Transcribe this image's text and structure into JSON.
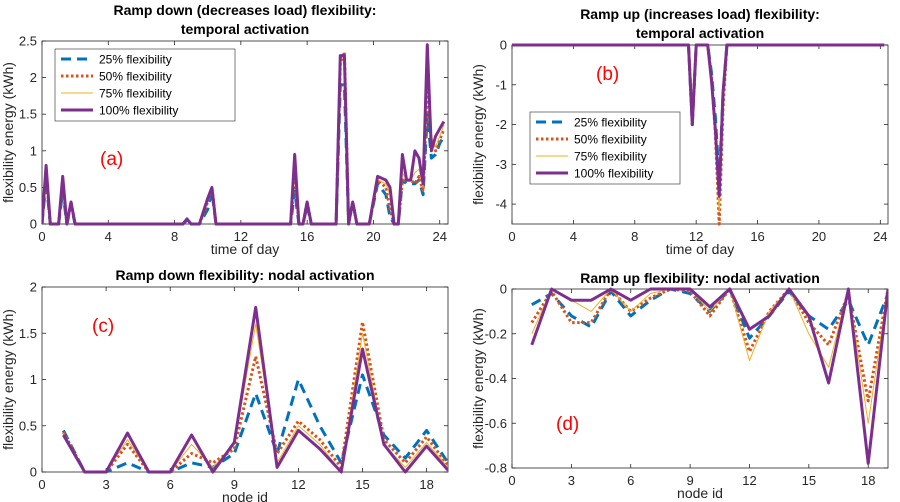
{
  "colors": {
    "s25": "#0072BD",
    "s50": "#D95319",
    "s75": "#EDB120",
    "s100": "#7E2F8E",
    "tag": "#FF0000",
    "axis": "#262626"
  },
  "series_names": [
    "25% flexibility",
    "50% flexibility",
    "75% flexibility",
    "100% flexibility"
  ],
  "chart_data": [
    {
      "id": "a",
      "type": "line",
      "tag": "(a)",
      "title_lines": [
        "Ramp down (decreases load) flexibility:",
        "temporal activation"
      ],
      "xlabel": "time of day",
      "ylabel": "flexibility energy (kWh)",
      "xlim": [
        0,
        24.5
      ],
      "ylim": [
        0,
        2.5
      ],
      "xticks": [
        0,
        4,
        8,
        12,
        16,
        20,
        24
      ],
      "xtick_labels": [
        "0",
        "4",
        "8",
        "12",
        "16",
        "20",
        "24"
      ],
      "yticks": [
        0,
        0.5,
        1,
        1.5,
        2,
        2.5
      ],
      "ytick_labels": [
        "0",
        "0.5",
        "1",
        "1.5",
        "2",
        "2.5"
      ],
      "legend_position": "top-left",
      "series": [
        {
          "name": "25% flexibility",
          "style": "dash",
          "x": [
            0,
            0.25,
            0.5,
            0.75,
            1,
            1.25,
            1.5,
            1.75,
            2,
            2.25,
            2.5,
            8.5,
            8.75,
            9,
            9.5,
            10,
            10.25,
            10.5,
            15,
            15.25,
            15.5,
            15.75,
            16,
            16.25,
            16.5,
            17.25,
            17.75,
            18,
            18.25,
            18.5,
            18.75,
            19,
            19.25,
            19.5,
            19.75,
            20.25,
            20.75,
            21,
            21.25,
            21.5,
            21.75,
            22,
            22.25,
            22.5,
            22.75,
            23,
            23.25,
            23.5,
            23.75,
            24,
            24.25
          ],
          "values": [
            0,
            0.6,
            0,
            0,
            0,
            0.45,
            0,
            0.25,
            0,
            0,
            0,
            0,
            0.05,
            0,
            0,
            0.2,
            0.45,
            0,
            0,
            0.45,
            0,
            0,
            0.25,
            0,
            0,
            0,
            0,
            1.9,
            1.9,
            0,
            0.3,
            0,
            0,
            0,
            0,
            0.55,
            0.4,
            0.1,
            0,
            0,
            0.6,
            0.55,
            0.55,
            0.55,
            0.6,
            0.4,
            1.5,
            0.9,
            0.95,
            1.1,
            1.2
          ]
        },
        {
          "name": "50% flexibility",
          "style": "dot",
          "x": [
            0,
            0.25,
            0.5,
            0.75,
            1,
            1.25,
            1.5,
            1.75,
            2,
            2.25,
            2.5,
            8.5,
            8.75,
            9,
            9.5,
            10,
            10.25,
            10.5,
            15,
            15.25,
            15.5,
            15.75,
            16,
            16.25,
            16.5,
            17.25,
            17.75,
            18,
            18.25,
            18.5,
            18.75,
            19,
            19.25,
            19.5,
            19.75,
            20.25,
            20.75,
            21,
            21.25,
            21.5,
            21.75,
            22,
            22.25,
            22.5,
            22.75,
            23,
            23.25,
            23.5,
            23.75,
            24,
            24.25
          ],
          "values": [
            0,
            0.7,
            0,
            0,
            0,
            0.55,
            0,
            0.3,
            0,
            0,
            0,
            0,
            0.06,
            0,
            0,
            0.3,
            0.5,
            0,
            0,
            0.7,
            0,
            0,
            0.3,
            0,
            0,
            0,
            0,
            2.2,
            2.35,
            0,
            0.3,
            0,
            0,
            0,
            0,
            0.6,
            0.5,
            0.2,
            0,
            0,
            0.6,
            0.6,
            0.6,
            0.55,
            0.65,
            0.45,
            1.8,
            1.1,
            1.0,
            1.15,
            1.3
          ]
        },
        {
          "name": "75% flexibility",
          "style": "solid-thin",
          "x": [
            0,
            0.25,
            0.5,
            0.75,
            1,
            1.25,
            1.5,
            1.75,
            2,
            2.25,
            2.5,
            8.5,
            8.75,
            9,
            9.5,
            10,
            10.25,
            10.5,
            15,
            15.25,
            15.5,
            15.75,
            16,
            16.25,
            16.5,
            17.25,
            17.75,
            18,
            18.25,
            18.5,
            18.75,
            19,
            19.25,
            19.5,
            19.75,
            20.25,
            20.75,
            21,
            21.25,
            21.5,
            21.75,
            22,
            22.25,
            22.5,
            22.75,
            23,
            23.25,
            23.5,
            23.75,
            24,
            24.25
          ],
          "values": [
            0,
            0.75,
            0,
            0,
            0,
            0.6,
            0,
            0.3,
            0,
            0,
            0,
            0,
            0.06,
            0,
            0,
            0.35,
            0.5,
            0,
            0,
            0.85,
            0,
            0,
            0.3,
            0,
            0,
            0,
            0,
            2.25,
            2.3,
            0,
            0.3,
            0,
            0,
            0,
            0,
            0.6,
            0.55,
            0.4,
            0,
            0,
            0.7,
            0.6,
            0.6,
            0.7,
            0.75,
            0.5,
            2.2,
            1.2,
            1.05,
            1.2,
            1.35
          ]
        },
        {
          "name": "100% flexibility",
          "style": "solid-thick",
          "x": [
            0,
            0.25,
            0.5,
            0.75,
            1,
            1.25,
            1.5,
            1.75,
            2,
            2.25,
            2.5,
            8.5,
            8.75,
            9,
            9.5,
            10,
            10.25,
            10.5,
            15,
            15.25,
            15.5,
            15.75,
            16,
            16.25,
            16.5,
            17.25,
            17.75,
            18,
            18.25,
            18.5,
            18.75,
            19,
            19.25,
            19.5,
            19.75,
            20.25,
            20.75,
            21,
            21.25,
            21.5,
            21.75,
            22,
            22.25,
            22.5,
            22.75,
            23,
            23.25,
            23.5,
            23.75,
            24,
            24.25
          ],
          "values": [
            0,
            0.8,
            0,
            0,
            0,
            0.65,
            0,
            0.3,
            0,
            0,
            0,
            0,
            0.07,
            0,
            0,
            0.35,
            0.5,
            0,
            0,
            0.95,
            0,
            0,
            0.3,
            0,
            0,
            0,
            0,
            2.3,
            2.3,
            0,
            0.3,
            0,
            0,
            0,
            0,
            0.65,
            0.6,
            0.5,
            0,
            0,
            0.95,
            0.6,
            0.6,
            1.0,
            0.9,
            0.55,
            2.45,
            1.0,
            1.2,
            1.3,
            1.4
          ]
        }
      ]
    },
    {
      "id": "b",
      "type": "line",
      "tag": "(b)",
      "title_lines": [
        "Ramp up (increases load)  flexibility:",
        "temporal activation"
      ],
      "xlabel": "time of day",
      "ylabel": "flexibility energy (kWh)",
      "xlim": [
        0,
        24.5
      ],
      "ylim": [
        -4.5,
        0
      ],
      "xticks": [
        0,
        4,
        8,
        12,
        16,
        20,
        24
      ],
      "xtick_labels": [
        "0",
        "4",
        "8",
        "12",
        "16",
        "20",
        "24"
      ],
      "yticks": [
        -4,
        -3,
        -2,
        -1,
        0
      ],
      "ytick_labels": [
        "-4",
        "-3",
        "-2",
        "-1",
        "0"
      ],
      "legend_position": "center-left",
      "series": [
        {
          "name": "25% flexibility",
          "style": "dash",
          "x": [
            0,
            11.5,
            11.75,
            12,
            12.25,
            12.75,
            13,
            13.25,
            13.5,
            13.75,
            14,
            24.25
          ],
          "values": [
            0,
            0,
            -2.0,
            0,
            0,
            0,
            -0.7,
            -1.8,
            -3.4,
            -1.3,
            0,
            0
          ]
        },
        {
          "name": "50% flexibility",
          "style": "dot",
          "x": [
            0,
            11.5,
            11.75,
            12,
            12.25,
            12.75,
            13,
            13.25,
            13.5,
            13.75,
            14,
            24.25
          ],
          "values": [
            0,
            0,
            -2.0,
            0,
            0,
            0,
            -0.8,
            -2.2,
            -4.5,
            -1.6,
            0,
            0
          ]
        },
        {
          "name": "75% flexibility",
          "style": "solid-thin",
          "x": [
            0,
            11.5,
            11.75,
            12,
            12.25,
            12.75,
            13,
            13.25,
            13.5,
            13.75,
            14,
            24.25
          ],
          "values": [
            0,
            0,
            -2.0,
            0,
            0,
            0,
            -0.8,
            -2.2,
            -4.2,
            -1.5,
            0,
            0
          ]
        },
        {
          "name": "100% flexibility",
          "style": "solid-thick",
          "x": [
            0,
            11.5,
            11.75,
            12,
            12.25,
            12.75,
            13,
            13.25,
            13.5,
            13.75,
            14,
            24.25
          ],
          "values": [
            0,
            0,
            -2.0,
            0,
            0,
            0,
            -0.9,
            -2.1,
            -3.8,
            -1.2,
            0,
            0
          ]
        }
      ]
    },
    {
      "id": "c",
      "type": "line",
      "tag": "(c)",
      "title_lines": [
        "Ramp down flexibility: nodal activation"
      ],
      "xlabel": "node id",
      "ylabel": "flexibility energy (kWh)",
      "xlim": [
        0,
        19
      ],
      "ylim": [
        0,
        2
      ],
      "xticks": [
        0,
        3,
        6,
        9,
        12,
        15,
        18
      ],
      "xtick_labels": [
        "0",
        "3",
        "6",
        "9",
        "12",
        "15",
        "18"
      ],
      "yticks": [
        0,
        0.5,
        1,
        1.5,
        2
      ],
      "ytick_labels": [
        "0",
        "0.5",
        "1",
        "1.5",
        "2"
      ],
      "legend_position": "none",
      "series": [
        {
          "name": "25% flexibility",
          "style": "dash",
          "x": [
            1,
            2,
            3,
            4,
            5,
            6,
            7,
            8,
            9,
            10,
            11,
            12,
            13,
            14,
            15,
            16,
            17,
            18,
            19
          ],
          "values": [
            0.45,
            0,
            0,
            0.1,
            0,
            0,
            0.1,
            0.05,
            0.2,
            0.85,
            0.2,
            1.0,
            0.5,
            0.1,
            1.05,
            0.4,
            0.15,
            0.45,
            0.1
          ]
        },
        {
          "name": "50% flexibility",
          "style": "dot",
          "x": [
            1,
            2,
            3,
            4,
            5,
            6,
            7,
            8,
            9,
            10,
            11,
            12,
            13,
            14,
            15,
            16,
            17,
            18,
            19
          ],
          "values": [
            0.43,
            0,
            0,
            0.3,
            0,
            0,
            0.2,
            0.1,
            0.25,
            1.25,
            0.2,
            0.55,
            0.35,
            0.05,
            1.62,
            0.35,
            0.1,
            0.38,
            0.07
          ]
        },
        {
          "name": "75% flexibility",
          "style": "solid-thin",
          "x": [
            1,
            2,
            3,
            4,
            5,
            6,
            7,
            8,
            9,
            10,
            11,
            12,
            13,
            14,
            15,
            16,
            17,
            18,
            19
          ],
          "values": [
            0.42,
            0,
            0,
            0.35,
            0,
            0,
            0.3,
            0.05,
            0.3,
            1.6,
            0.1,
            0.5,
            0.3,
            0,
            1.5,
            0.3,
            0.05,
            0.32,
            0.05
          ]
        },
        {
          "name": "100% flexibility",
          "style": "solid-thick",
          "x": [
            1,
            2,
            3,
            4,
            5,
            6,
            7,
            8,
            9,
            10,
            11,
            12,
            13,
            14,
            15,
            16,
            17,
            18,
            19
          ],
          "values": [
            0.4,
            0,
            0,
            0.42,
            0,
            0,
            0.4,
            0,
            0.32,
            1.78,
            0.05,
            0.45,
            0.25,
            0,
            1.33,
            0.3,
            0,
            0.28,
            0.02
          ]
        }
      ]
    },
    {
      "id": "d",
      "type": "line",
      "tag": "(d)",
      "title_lines": [
        "Ramp up flexibility: nodal activation"
      ],
      "xlabel": "node id",
      "ylabel": "flexibility energy (kWh)",
      "xlim": [
        0,
        19
      ],
      "ylim": [
        -0.8,
        0
      ],
      "xticks": [
        0,
        3,
        6,
        9,
        12,
        15,
        18
      ],
      "xtick_labels": [
        "0",
        "3",
        "6",
        "9",
        "12",
        "15",
        "18"
      ],
      "yticks": [
        -0.8,
        -0.6,
        -0.4,
        -0.2,
        0
      ],
      "ytick_labels": [
        "-0.8",
        "-0.6",
        "-0.4",
        "-0.2",
        "0"
      ],
      "legend_position": "none",
      "series": [
        {
          "name": "25% flexibility",
          "style": "dash",
          "x": [
            1,
            2,
            3,
            4,
            5,
            6,
            7,
            8,
            9,
            10,
            11,
            12,
            13,
            14,
            15,
            16,
            17,
            18,
            19
          ],
          "values": [
            -0.07,
            -0.02,
            -0.12,
            -0.17,
            -0.01,
            -0.12,
            -0.05,
            0,
            -0.02,
            -0.1,
            0,
            -0.22,
            -0.12,
            -0.01,
            -0.12,
            -0.18,
            -0.05,
            -0.25,
            -0.02
          ]
        },
        {
          "name": "50% flexibility",
          "style": "dot",
          "x": [
            1,
            2,
            3,
            4,
            5,
            6,
            7,
            8,
            9,
            10,
            11,
            12,
            13,
            14,
            15,
            16,
            17,
            18,
            19
          ],
          "values": [
            -0.15,
            -0.01,
            -0.15,
            -0.15,
            0,
            -0.1,
            -0.04,
            0,
            -0.01,
            -0.12,
            0,
            -0.28,
            -0.1,
            0,
            -0.15,
            -0.25,
            -0.02,
            -0.5,
            0
          ]
        },
        {
          "name": "75% flexibility",
          "style": "solid-thin",
          "x": [
            1,
            2,
            3,
            4,
            5,
            6,
            7,
            8,
            9,
            10,
            11,
            12,
            13,
            14,
            15,
            16,
            17,
            18,
            19
          ],
          "values": [
            -0.2,
            0,
            -0.05,
            -0.1,
            0,
            -0.1,
            -0.02,
            0,
            0,
            -0.1,
            0,
            -0.32,
            -0.1,
            0,
            -0.2,
            -0.35,
            0,
            -0.6,
            0
          ]
        },
        {
          "name": "100% flexibility",
          "style": "solid-thick",
          "x": [
            1,
            2,
            3,
            4,
            5,
            6,
            7,
            8,
            9,
            10,
            11,
            12,
            13,
            14,
            15,
            16,
            17,
            18,
            19
          ],
          "values": [
            -0.25,
            0,
            -0.05,
            -0.05,
            0,
            -0.05,
            0,
            0,
            0,
            -0.08,
            0,
            -0.18,
            -0.12,
            0,
            -0.12,
            -0.42,
            0,
            -0.78,
            0
          ]
        }
      ]
    }
  ]
}
